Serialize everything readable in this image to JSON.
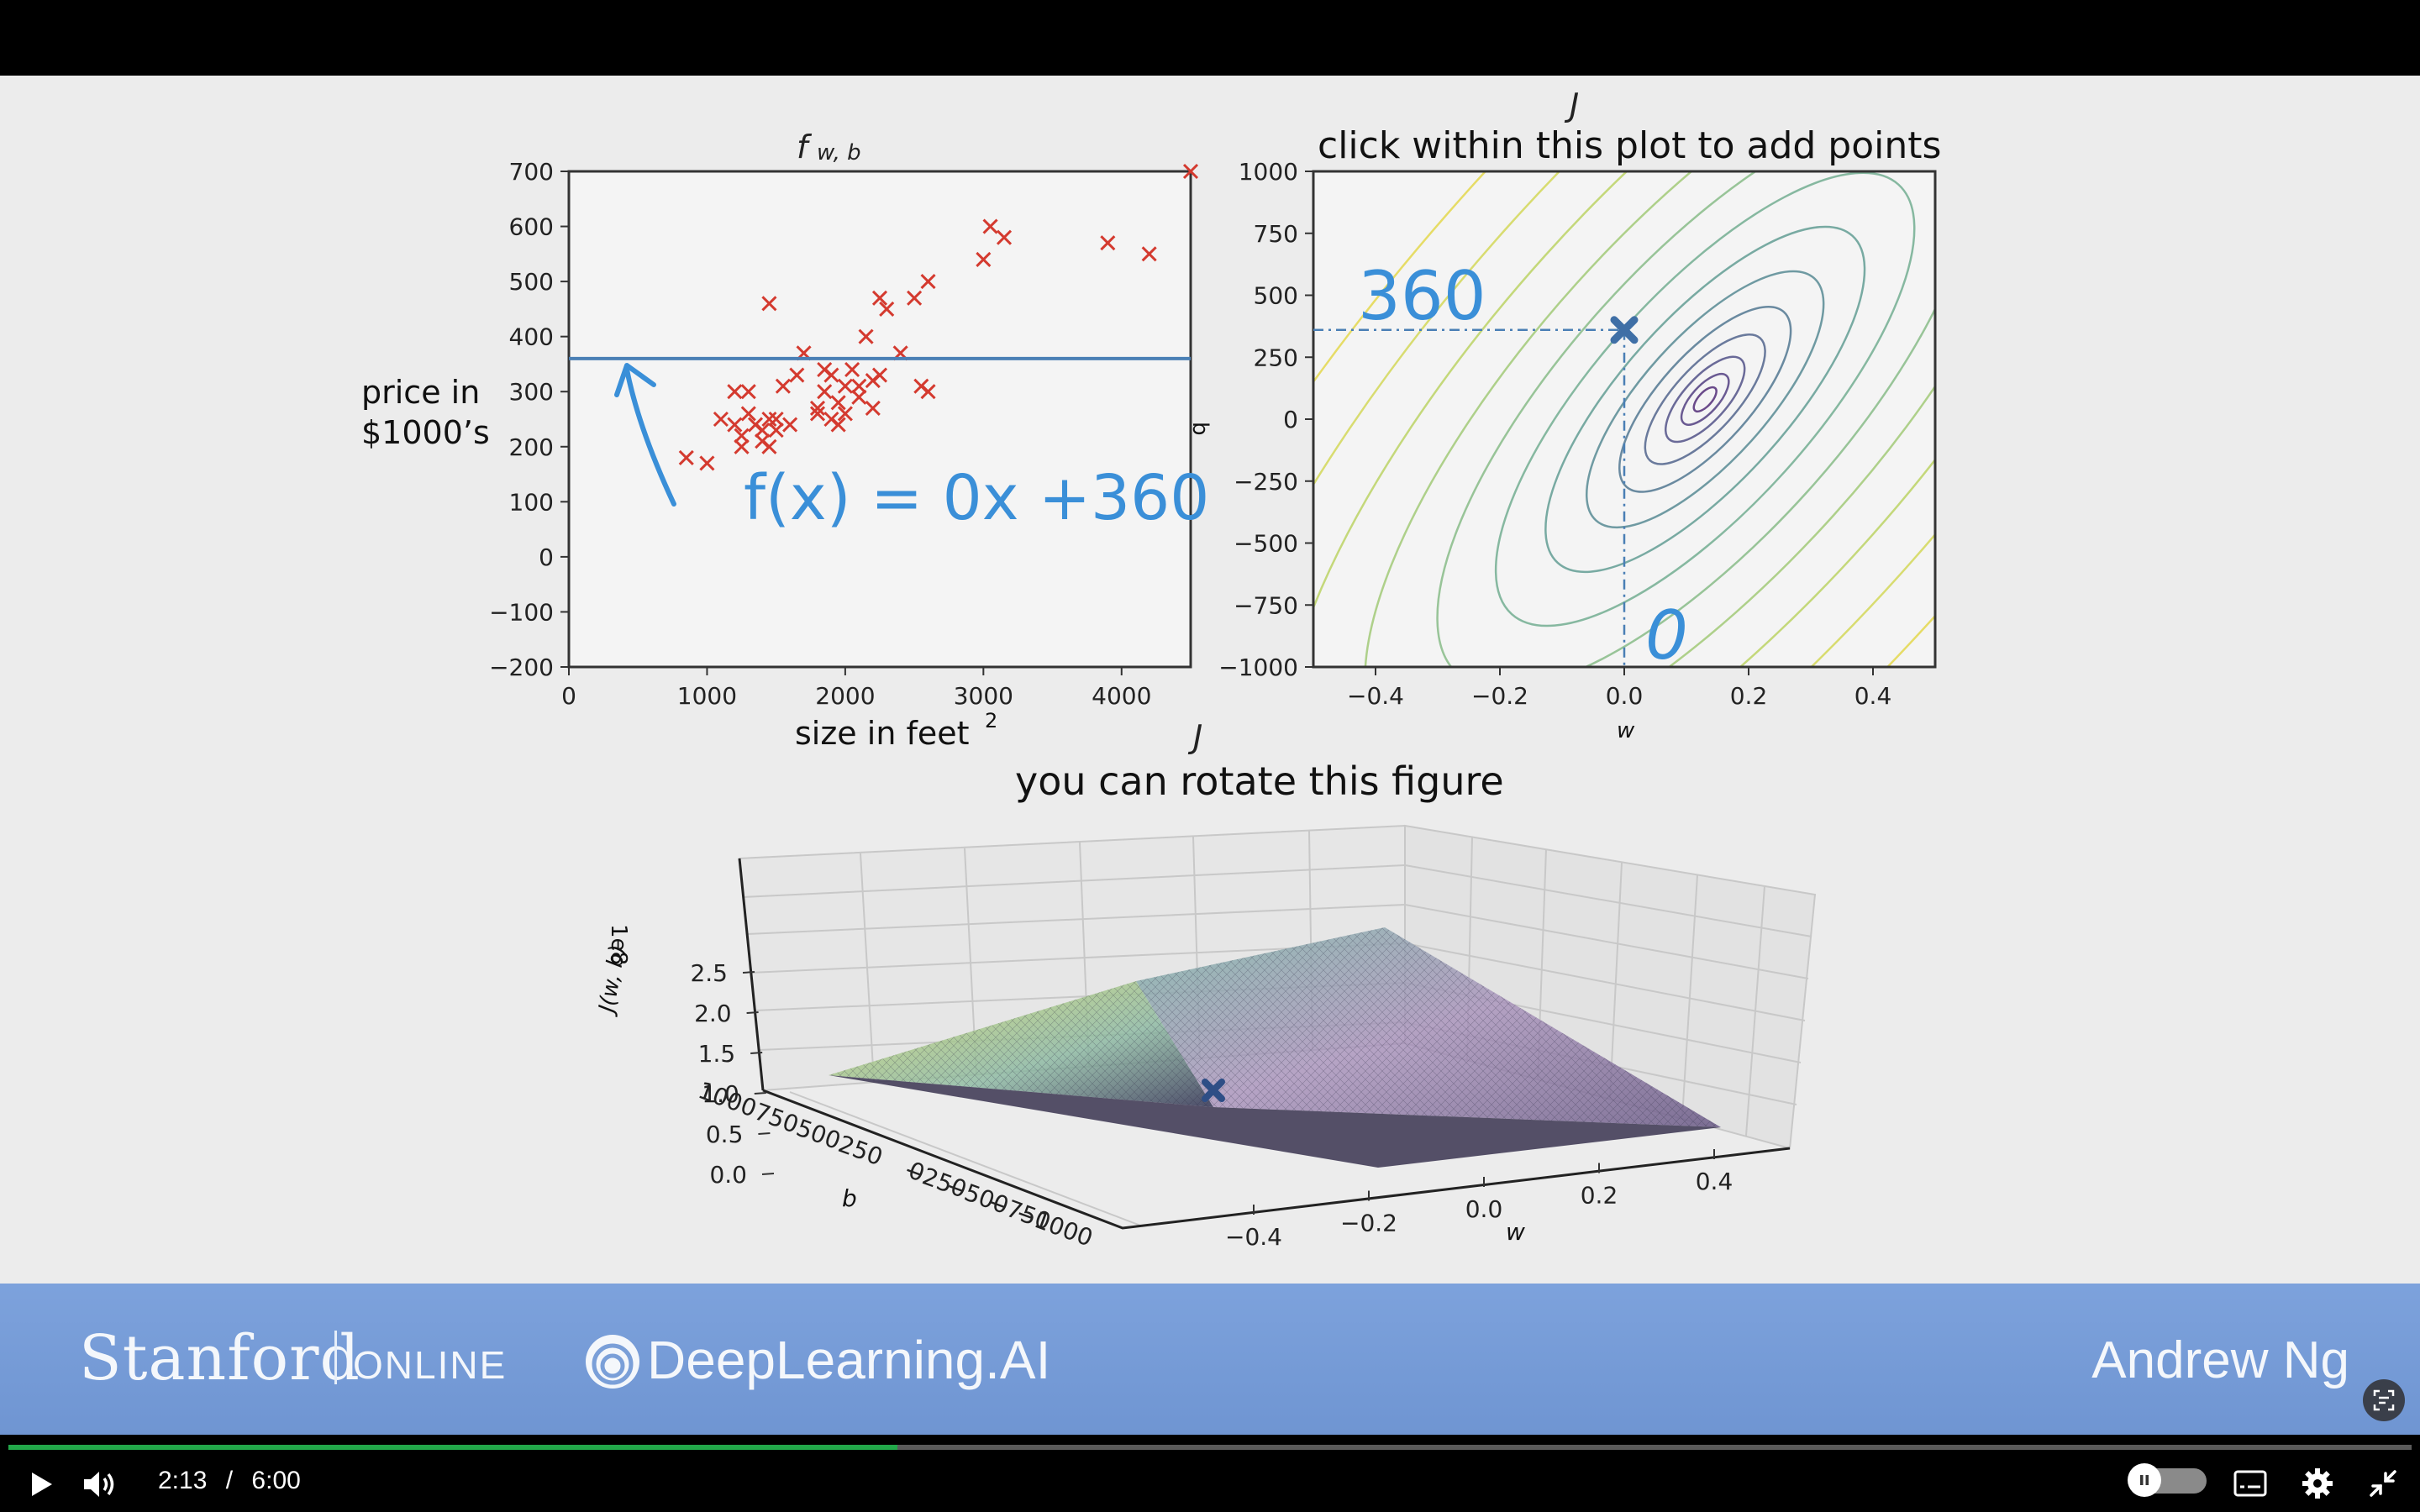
{
  "slide": {
    "plot1": {
      "title": "f",
      "title_sub": "w, b",
      "ylabel_line1": "price in",
      "ylabel_line2": "$1000’s",
      "xlabel": "size in feet",
      "xlabel_sup": "2",
      "annotation": "f(x) = 0x +360",
      "chart_data": {
        "type": "scatter",
        "xlim": [
          0,
          4500
        ],
        "ylim": [
          -200,
          700
        ],
        "xticks": [
          "0",
          "1000",
          "2000",
          "3000",
          "4000"
        ],
        "yticks": [
          "700",
          "600",
          "500",
          "400",
          "300",
          "200",
          "100",
          "0",
          "−100",
          "−200"
        ],
        "points": [
          [
            850,
            180
          ],
          [
            1000,
            170
          ],
          [
            1100,
            250
          ],
          [
            1200,
            240
          ],
          [
            1200,
            300
          ],
          [
            1250,
            220
          ],
          [
            1250,
            200
          ],
          [
            1300,
            260
          ],
          [
            1300,
            300
          ],
          [
            1350,
            240
          ],
          [
            1400,
            230
          ],
          [
            1400,
            210
          ],
          [
            1450,
            200
          ],
          [
            1450,
            250
          ],
          [
            1450,
            460
          ],
          [
            1500,
            230
          ],
          [
            1500,
            250
          ],
          [
            1550,
            310
          ],
          [
            1600,
            240
          ],
          [
            1650,
            330
          ],
          [
            1700,
            370
          ],
          [
            1800,
            260
          ],
          [
            1800,
            270
          ],
          [
            1850,
            300
          ],
          [
            1850,
            340
          ],
          [
            1900,
            330
          ],
          [
            1900,
            250
          ],
          [
            1950,
            280
          ],
          [
            1950,
            240
          ],
          [
            2000,
            260
          ],
          [
            2000,
            310
          ],
          [
            2050,
            340
          ],
          [
            2100,
            290
          ],
          [
            2100,
            310
          ],
          [
            2150,
            400
          ],
          [
            2200,
            320
          ],
          [
            2200,
            270
          ],
          [
            2250,
            470
          ],
          [
            2250,
            330
          ],
          [
            2300,
            450
          ],
          [
            2400,
            370
          ],
          [
            2500,
            470
          ],
          [
            2550,
            310
          ],
          [
            2600,
            500
          ],
          [
            2600,
            300
          ],
          [
            3000,
            540
          ],
          [
            3050,
            600
          ],
          [
            3150,
            580
          ],
          [
            3900,
            570
          ],
          [
            4200,
            550
          ],
          [
            4500,
            700
          ]
        ],
        "line": {
          "slope": 0,
          "intercept": 360
        }
      }
    },
    "plot2": {
      "title_top": "J",
      "title": "click within this plot to add points",
      "ylabel": "b",
      "xlabel": "w",
      "annotation_b": "360",
      "annotation_w": "0",
      "chart_data": {
        "type": "contour",
        "xlim": [
          -0.5,
          0.5
        ],
        "ylim": [
          -1000,
          1000
        ],
        "xticks": [
          "−0.4",
          "−0.2",
          "0.0",
          "0.2",
          "0.4"
        ],
        "yticks": [
          "1000",
          "750",
          "500",
          "250",
          "0",
          "−250",
          "−500",
          "−750",
          "−1000"
        ],
        "marker": {
          "w": 0,
          "b": 360
        },
        "minimum": {
          "w": 0.13,
          "b": 80
        }
      }
    },
    "plot3": {
      "title_top": "J",
      "title": "you can rotate this figure",
      "zlabel": "J(w, b)",
      "zscale": "1e8",
      "blabel": "b",
      "wlabel": "w",
      "chart_data": {
        "type": "surface",
        "zticks": [
          "2.5",
          "2.0",
          "1.5",
          "1.0",
          "0.5",
          "0.0"
        ],
        "bticks": [
          "1000",
          "750",
          "500",
          "250",
          "0",
          "−250",
          "−500",
          "−750",
          "−1000"
        ],
        "wticks": [
          "−0.4",
          "−0.2",
          "0.0",
          "0.2",
          "0.4"
        ],
        "marker": {
          "w": 0,
          "b": 360
        }
      }
    },
    "colors": {
      "scatter": "#d43a2f",
      "line": "#4a7fb5",
      "ink": "#3a8fd8",
      "marker": "#3f6fa6"
    }
  },
  "brand": {
    "stanford": "Stanford",
    "online": "ONLINE",
    "deeplearning": "DeepLearning.AI",
    "author": "Andrew Ng"
  },
  "player": {
    "current_time": "2:13",
    "separator": "/",
    "duration": "6:00",
    "progress_fraction": 0.37,
    "icons": [
      "play-icon",
      "volume-icon",
      "autoplay-toggle",
      "captions-icon",
      "settings-icon",
      "exit-fullscreen-icon"
    ]
  }
}
